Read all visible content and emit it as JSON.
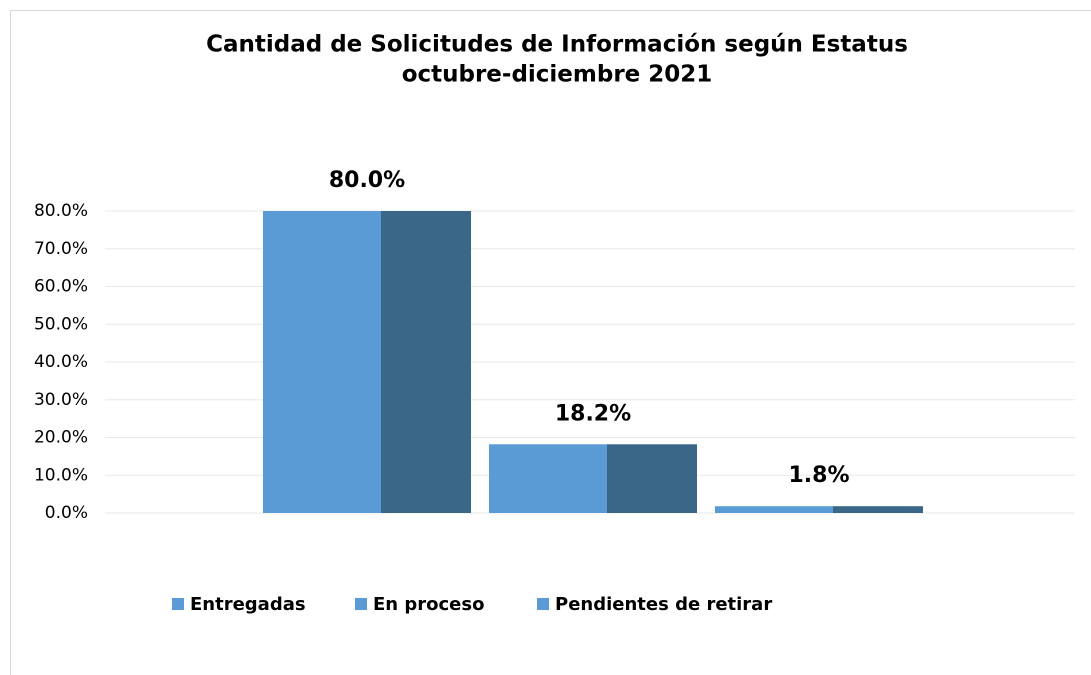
{
  "chart_data": {
    "type": "bar",
    "title": "Cantidad de Solicitudes de Información según Estatus",
    "subtitle": "octubre-diciembre 2021",
    "series": [
      {
        "name": "Entregadas",
        "color": "#5b9bd5",
        "side_color": "#3a6688",
        "values": [
          80.0
        ],
        "value_labels": [
          "80.0%"
        ]
      },
      {
        "name": "En proceso",
        "color": "#5b9bd5",
        "side_color": "#3a6688",
        "values": [
          18.2
        ],
        "value_labels": [
          "18.2%"
        ]
      },
      {
        "name": "Pendientes de retirar",
        "color": "#5b9bd5",
        "side_color": "#3a6688",
        "values": [
          1.8
        ],
        "value_labels": [
          "1.8%"
        ]
      }
    ],
    "ylim": [
      0,
      80
    ],
    "yticks": [
      {
        "value": 0,
        "label": "0.0%"
      },
      {
        "value": 10,
        "label": "10.0%"
      },
      {
        "value": 20,
        "label": "20.0%"
      },
      {
        "value": 30,
        "label": "30.0%"
      },
      {
        "value": 40,
        "label": "40.0%"
      },
      {
        "value": 50,
        "label": "50.0%"
      },
      {
        "value": 60,
        "label": "60.0%"
      },
      {
        "value": 70,
        "label": "70.0%"
      },
      {
        "value": 80,
        "label": "80.0%"
      }
    ],
    "grid": true,
    "legend": "bottom"
  }
}
